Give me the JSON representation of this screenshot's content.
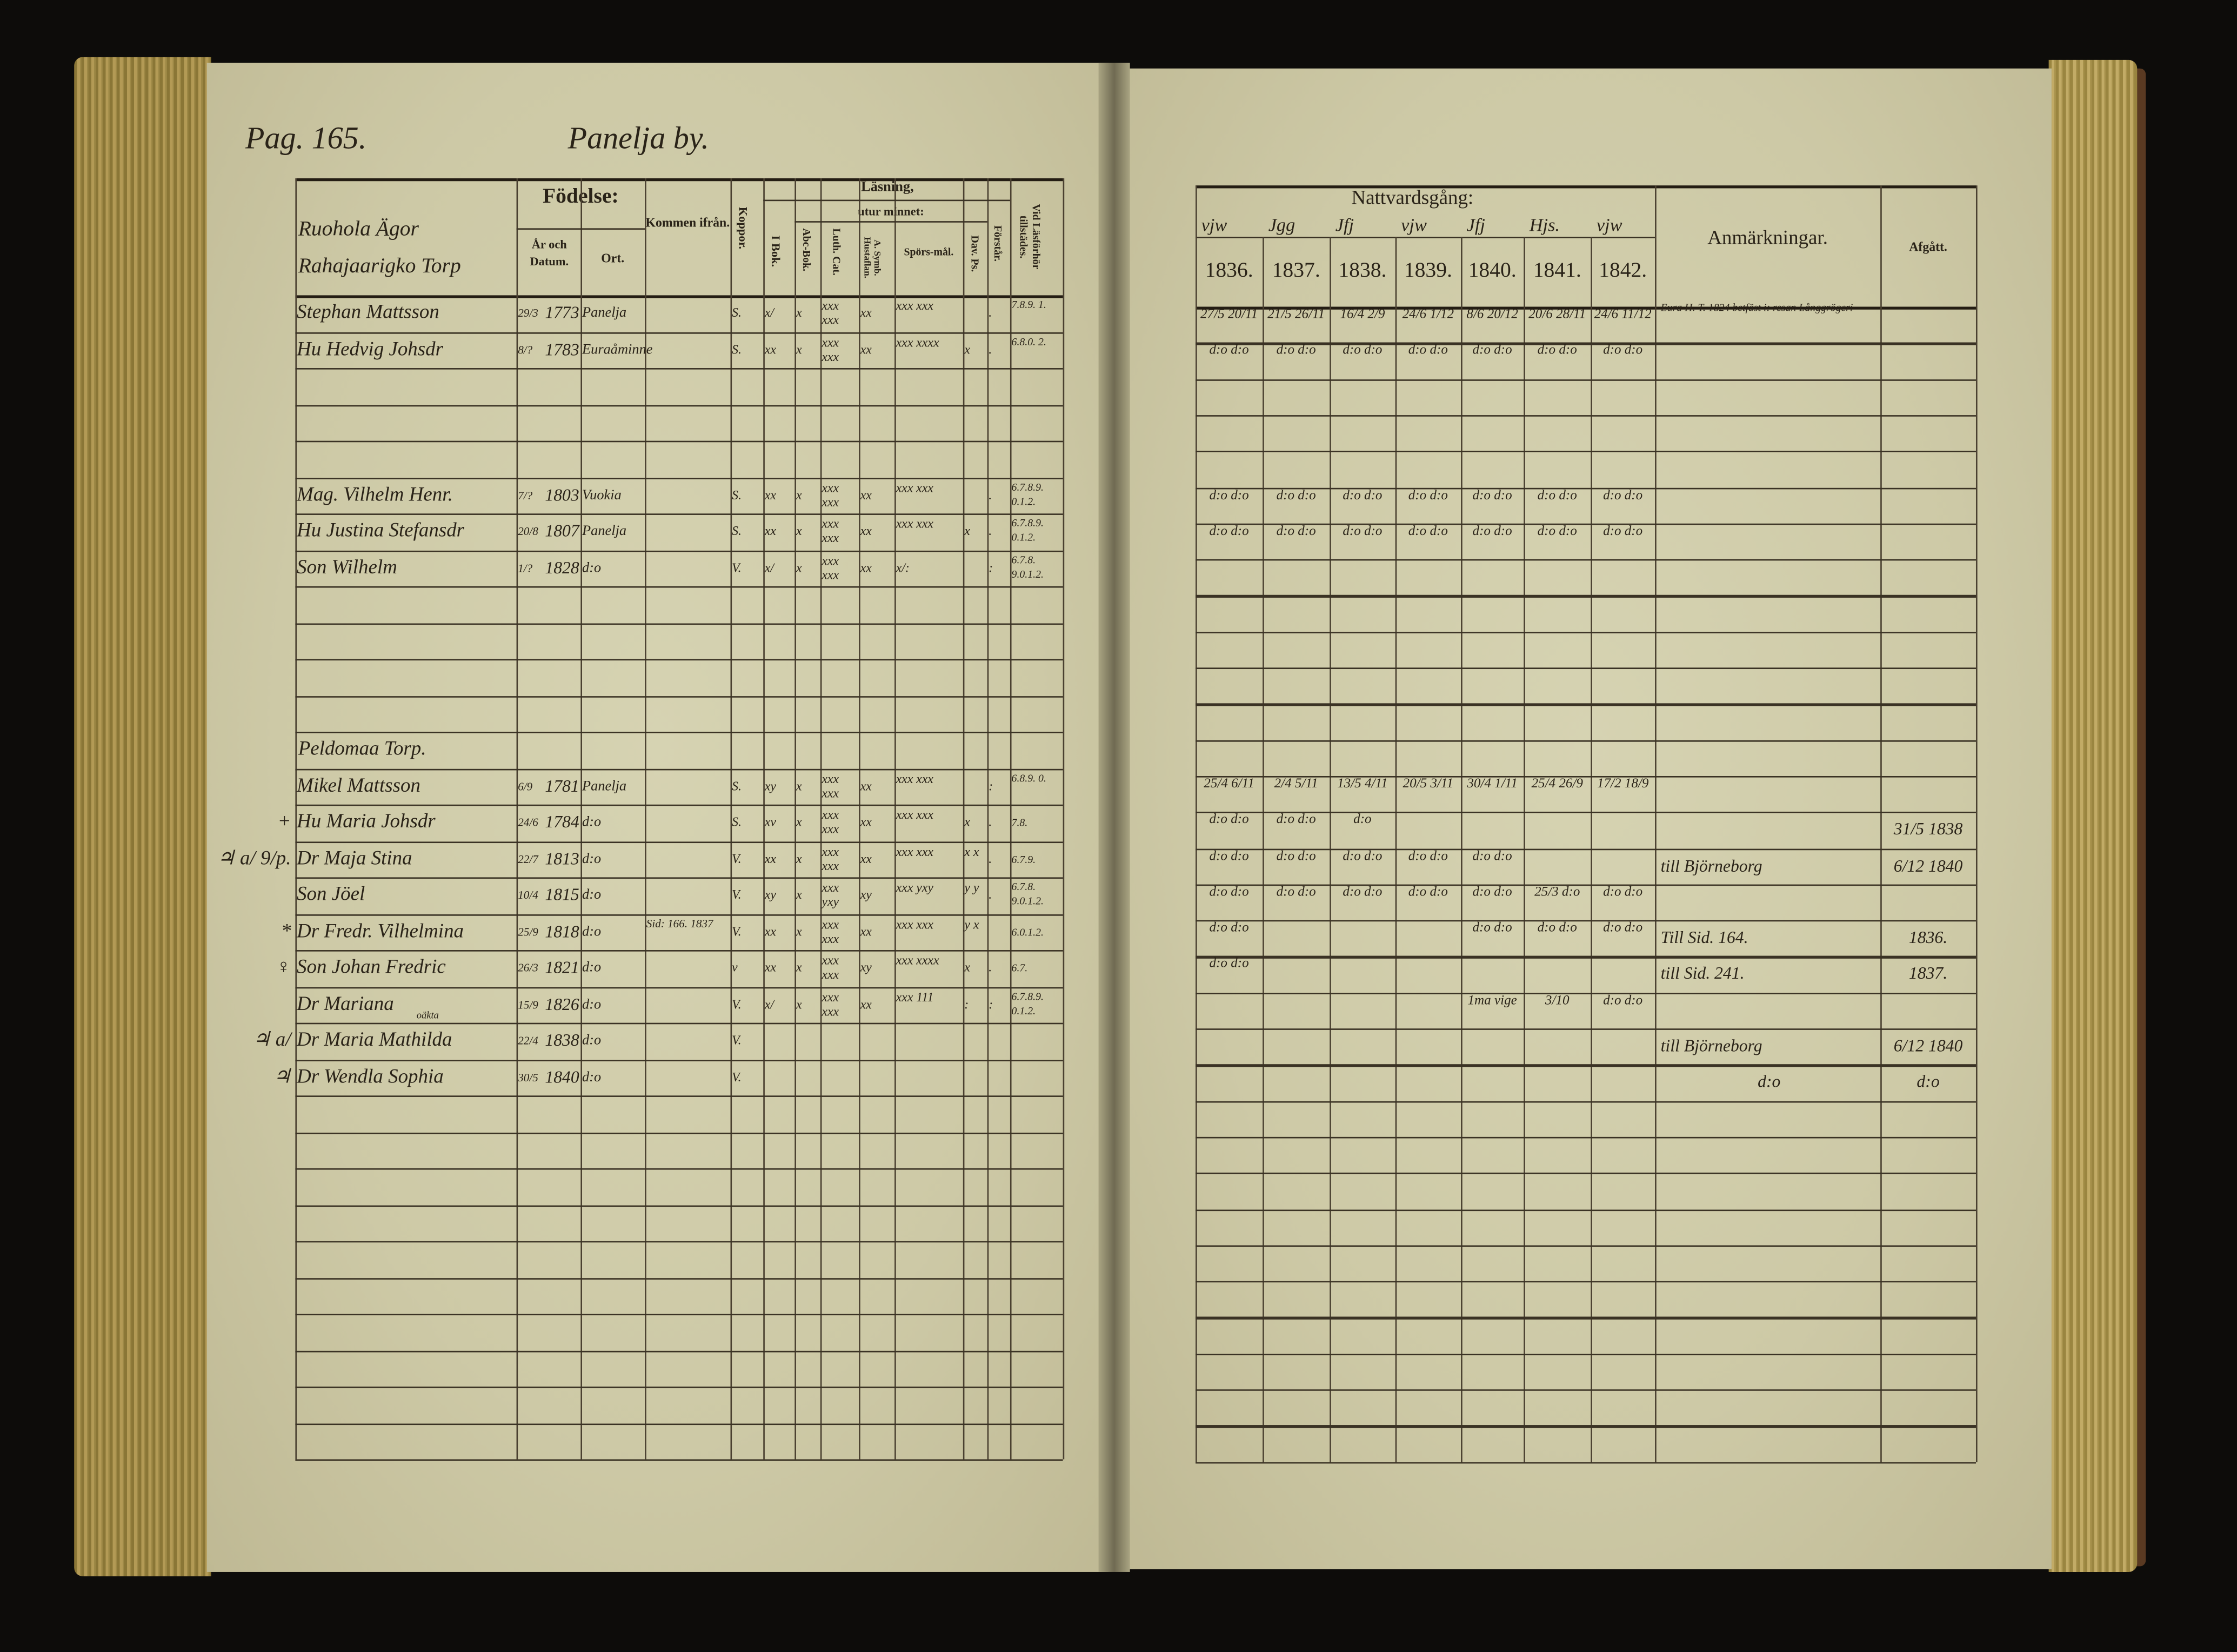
{
  "left_page": {
    "page_label": "Pag. 165.",
    "village": "Panelja by.",
    "headers": {
      "birth": "Födelse:",
      "year_date": "År och Datum.",
      "place": "Ort.",
      "came_from": "Kommen ifrån.",
      "smallpox": "Koppor.",
      "reading": "Läsning,",
      "from_book": "I Bok.",
      "by_heart": "utur minnet:",
      "abc_book": "Abc-Bok.",
      "luth_cat": "Luth. Cat.",
      "symb": "A. Symb. Hustaflan.",
      "questions": "Spörs-mål.",
      "dav_ps": "Dav. Ps.",
      "understands": "Förstår.",
      "attended": "Vid Läsförhör tillstädes."
    },
    "household_heading": "Ruohola Ägor Rahajaarigko Torp",
    "rows": [
      {
        "row": 0,
        "name": "Stephan Mattsson",
        "date": "29/3",
        "year": "1773",
        "place": "Panelja",
        "from": "",
        "koppor": "S.",
        "ibok": "x/",
        "abc": "x",
        "luth": "xxx xxx",
        "symb": "xx",
        "spors": "xxx xxx",
        "dav": "",
        "forstar": ".",
        "vid": "7.8.9. 1."
      },
      {
        "row": 1,
        "name": "Hu Hedvig Johsdr",
        "date": "8/?",
        "year": "1783",
        "place": "Euraåminne",
        "from": "",
        "koppor": "S.",
        "ibok": "xx",
        "abc": "x",
        "luth": "xxx xxx",
        "symb": "xx",
        "spors": "xxx xxxx",
        "dav": "x",
        "forstar": ".",
        "vid": "6.8.0. 2."
      },
      {
        "row": 5,
        "name": "Mag. Vilhelm Henr.",
        "date": "7/?",
        "year": "1803",
        "place": "Vuokia",
        "from": "",
        "koppor": "S.",
        "ibok": "xx",
        "abc": "x",
        "luth": "xxx xxx",
        "symb": "xx",
        "spors": "xxx xxx",
        "dav": "",
        "forstar": ".",
        "vid": "6.7.8.9. 0.1.2."
      },
      {
        "row": 6,
        "name": "Hu Justina Stefansdr",
        "date": "20/8",
        "year": "1807",
        "place": "Panelja",
        "from": "",
        "koppor": "S.",
        "ibok": "xx",
        "abc": "x",
        "luth": "xxx xxx",
        "symb": "xx",
        "spors": "xxx xxx",
        "dav": "x",
        "forstar": ".",
        "vid": "6.7.8.9. 0.1.2."
      },
      {
        "row": 7,
        "name": "Son Wilhelm",
        "date": "1/?",
        "year": "1828",
        "place": "d:o",
        "from": "",
        "koppor": "V.",
        "ibok": "x/",
        "abc": "x",
        "luth": "xxx xxx",
        "symb": "xx",
        "spors": "x/:",
        "dav": "",
        "forstar": ":",
        "vid": "6.7.8. 9.0.1.2."
      },
      {
        "row": 13,
        "name": "Mikel Mattsson",
        "date": "6/9",
        "year": "1781",
        "place": "Panelja",
        "from": "",
        "koppor": "S.",
        "ibok": "xy",
        "abc": "x",
        "luth": "xxx xxx",
        "symb": "xx",
        "spors": "xxx xxx",
        "dav": "",
        "forstar": ":",
        "vid": "6.8.9. 0."
      },
      {
        "row": 14,
        "name": "Hu Maria Johsdr",
        "date": "24/6",
        "year": "1784",
        "place": "d:o",
        "from": "",
        "koppor": "S.",
        "ibok": "xv",
        "abc": "x",
        "luth": "xxx xxx",
        "symb": "xx",
        "spors": "xxx xxx",
        "dav": "x",
        "forstar": ".",
        "vid": "7.8."
      },
      {
        "row": 15,
        "name": "Dr Maja Stina",
        "date": "22/7",
        "year": "1813",
        "place": "d:o",
        "from": "",
        "koppor": "V.",
        "ibok": "xx",
        "abc": "x",
        "luth": "xxx xxx",
        "symb": "xx",
        "spors": "xxx xxx",
        "dav": "x x",
        "forstar": ".",
        "vid": "6.7.9."
      },
      {
        "row": 16,
        "name": "Son Jöel",
        "date": "10/4",
        "year": "1815",
        "place": "d:o",
        "from": "",
        "koppor": "V.",
        "ibok": "xy",
        "abc": "x",
        "luth": "xxx yxy",
        "symb": "xy",
        "spors": "xxx yxy",
        "dav": "y y",
        "forstar": ".",
        "vid": "6.7.8. 9.0.1.2."
      },
      {
        "row": 17,
        "name": "Dr Fredr. Vilhelmina",
        "date": "25/9",
        "year": "1818",
        "place": "d:o",
        "from": "Sid: 166. 1837",
        "koppor": "V.",
        "ibok": "xx",
        "abc": "x",
        "luth": "xxx xxx",
        "symb": "xx",
        "spors": "xxx xxx",
        "dav": "y x",
        "forstar": "",
        "vid": "6.0.1.2."
      },
      {
        "row": 18,
        "name": "Son Johan Fredric",
        "date": "26/3",
        "year": "1821",
        "place": "d:o",
        "from": "",
        "koppor": "v",
        "ibok": "xx",
        "abc": "x",
        "luth": "xxx xxx",
        "symb": "xy",
        "spors": "xxx xxxx",
        "dav": "x",
        "forstar": ".",
        "vid": "6.7."
      },
      {
        "row": 19,
        "name": "Dr Mariana",
        "date": "15/9",
        "year": "1826",
        "place": "d:o",
        "from": "",
        "koppor": "V.",
        "ibok": "x/",
        "abc": "x",
        "luth": "xxx xxx",
        "symb": "xx",
        "spors": "xxx 111",
        "dav": ":",
        "forstar": ":",
        "vid": "6.7.8.9. 0.1.2."
      },
      {
        "row": 20,
        "name": "Dr Maria Mathilda",
        "date": "22/4",
        "year": "1838",
        "place": "d:o",
        "from": "",
        "koppor": "V.",
        "ibok": "",
        "abc": "",
        "luth": "",
        "symb": "",
        "spors": "",
        "dav": "",
        "forstar": "",
        "vid": ""
      },
      {
        "row": 21,
        "name": "Dr Wendla Sophia",
        "date": "30/5",
        "year": "1840",
        "place": "d:o",
        "from": "",
        "koppor": "V.",
        "ibok": "",
        "abc": "",
        "luth": "",
        "symb": "",
        "spors": "",
        "dav": "",
        "forstar": "",
        "vid": ""
      }
    ],
    "section_heading": {
      "row": 12,
      "text": "Peldomaa Torp."
    },
    "illegitimate_note": {
      "row": 20,
      "text": "oäkta"
    },
    "margin_marks": [
      {
        "row": 14,
        "text": "+"
      },
      {
        "row": 15,
        "text": "♃ a/ 9/p."
      },
      {
        "row": 17,
        "text": "*"
      },
      {
        "row": 18,
        "text": "♀"
      },
      {
        "row": 20,
        "text": "♃ a/"
      },
      {
        "row": 21,
        "text": "♃"
      }
    ]
  },
  "right_page": {
    "headers": {
      "communion": "Nattvardsgång:",
      "years": [
        "1836.",
        "1837.",
        "1838.",
        "1839.",
        "1840.",
        "1841.",
        "1842."
      ],
      "signatures": [
        "vjw",
        "Jgg",
        "Jfj",
        "vjw",
        "Jfj",
        "Hjs.",
        "vjw"
      ],
      "remarks": "Anmärkningar.",
      "departed": "Afgått."
    },
    "rows": [
      {
        "row": 0,
        "communion": [
          "27/5 20/11",
          "21/5 26/11",
          "16/4 2/9",
          "24/6 1/12",
          "8/6 20/12",
          "20/6 28/11",
          "24/6 11/12"
        ],
        "remark": "Eura H. T. 1824 betfäst i: resan Långgrögeri",
        "departed": ""
      },
      {
        "row": 1,
        "communion": [
          "d:o d:o",
          "d:o d:o",
          "d:o d:o",
          "d:o d:o",
          "d:o d:o",
          "d:o d:o",
          "d:o d:o"
        ],
        "remark": "",
        "departed": ""
      },
      {
        "row": 5,
        "communion": [
          "d:o d:o",
          "d:o d:o",
          "d:o d:o",
          "d:o d:o",
          "d:o d:o",
          "d:o d:o",
          "d:o d:o"
        ],
        "remark": "",
        "departed": ""
      },
      {
        "row": 6,
        "communion": [
          "d:o d:o",
          "d:o d:o",
          "d:o d:o",
          "d:o d:o",
          "d:o d:o",
          "d:o d:o",
          "d:o d:o"
        ],
        "remark": "",
        "departed": ""
      },
      {
        "row": 13,
        "communion": [
          "25/4 6/11",
          "2/4 5/11",
          "13/5 4/11",
          "20/5 3/11",
          "30/4 1/11",
          "25/4 26/9",
          "17/2 18/9"
        ],
        "remark": "",
        "departed": ""
      },
      {
        "row": 14,
        "communion": [
          "d:o d:o",
          "d:o d:o",
          "d:o",
          "",
          "",
          "",
          ""
        ],
        "remark": "",
        "departed": "31/5 1838"
      },
      {
        "row": 15,
        "communion": [
          "d:o d:o",
          "d:o d:o",
          "d:o d:o",
          "d:o d:o",
          "d:o d:o",
          "",
          ""
        ],
        "remark": "till Björneborg",
        "departed": "6/12 1840"
      },
      {
        "row": 16,
        "communion": [
          "d:o d:o",
          "d:o d:o",
          "d:o d:o",
          "d:o d:o",
          "d:o d:o",
          "25/3 d:o",
          "d:o d:o"
        ],
        "remark": "",
        "departed": ""
      },
      {
        "row": 17,
        "communion": [
          "d:o d:o",
          "",
          "",
          "",
          "d:o d:o",
          "d:o d:o",
          "d:o d:o"
        ],
        "remark": "Till Sid. 164.",
        "departed": "1836."
      },
      {
        "row": 18,
        "communion": [
          "d:o d:o",
          "",
          "",
          "",
          "",
          "",
          ""
        ],
        "remark": "till Sid. 241.",
        "departed": "1837."
      },
      {
        "row": 19,
        "communion": [
          "",
          "",
          "",
          "",
          "1ma vige",
          "3/10",
          "d:o d:o"
        ],
        "remark": "",
        "departed": ""
      },
      {
        "row": 20,
        "communion": [
          "",
          "",
          "",
          "",
          "",
          "",
          ""
        ],
        "remark": "till Björneborg",
        "departed": "6/12 1840"
      },
      {
        "row": 21,
        "communion": [
          "",
          "",
          "",
          "",
          "",
          "",
          ""
        ],
        "remark": "d:o",
        "departed": "d:o"
      }
    ]
  },
  "colors": {
    "paper": "#cdc9a6",
    "ink": "#2a2318",
    "background": "#0d0c0a",
    "page_edges": "#b39a55"
  }
}
